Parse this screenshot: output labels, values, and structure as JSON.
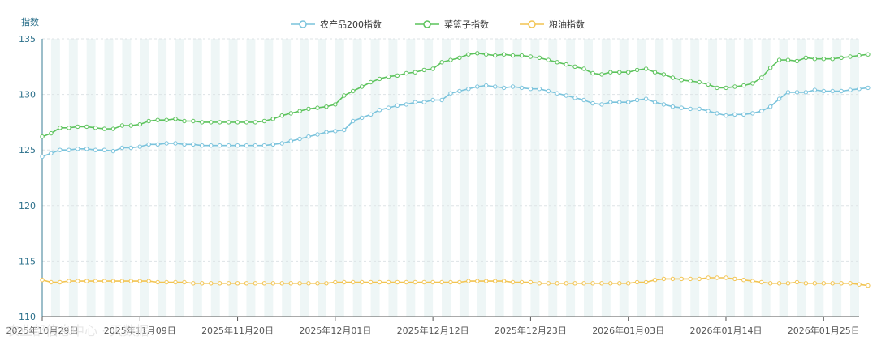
{
  "chart_data": {
    "type": "line",
    "title": "",
    "ylabel": "指数",
    "ylim": [
      110,
      135
    ],
    "yticks": [
      110,
      115,
      120,
      125,
      130,
      135
    ],
    "x_start": "2025-10-29",
    "x_end": "2026-01-29",
    "xticks": [
      "2025年10月29日",
      "2025年11月09日",
      "2025年11月20日",
      "2025年12月01日",
      "2025年12月12日",
      "2025年12月23日",
      "2026年01月03日",
      "2026年01月14日",
      "2026年01月25日"
    ],
    "legend_position": "top-center",
    "grid": "vertical-stripes",
    "watermark": "农业部信息中心 · 天数据",
    "series": [
      {
        "name": "农产品200指数",
        "color": "#7ac3dc",
        "values": [
          124.4,
          124.7,
          125.0,
          125.0,
          125.1,
          125.1,
          125.0,
          125.0,
          124.9,
          125.2,
          125.2,
          125.3,
          125.5,
          125.5,
          125.6,
          125.6,
          125.5,
          125.5,
          125.4,
          125.4,
          125.4,
          125.4,
          125.4,
          125.4,
          125.4,
          125.4,
          125.5,
          125.6,
          125.8,
          126.0,
          126.2,
          126.4,
          126.6,
          126.7,
          126.8,
          127.6,
          127.9,
          128.2,
          128.6,
          128.8,
          129.0,
          129.1,
          129.3,
          129.3,
          129.5,
          129.5,
          130.1,
          130.3,
          130.5,
          130.7,
          130.8,
          130.7,
          130.6,
          130.7,
          130.6,
          130.5,
          130.5,
          130.3,
          130.1,
          129.9,
          129.7,
          129.5,
          129.2,
          129.1,
          129.3,
          129.3,
          129.3,
          129.5,
          129.6,
          129.3,
          129.1,
          128.9,
          128.8,
          128.7,
          128.7,
          128.5,
          128.3,
          128.1,
          128.2,
          128.2,
          128.3,
          128.5,
          128.9,
          129.6,
          130.2,
          130.2,
          130.2,
          130.4,
          130.3,
          130.3,
          130.3,
          130.4,
          130.5,
          130.6
        ]
      },
      {
        "name": "菜篮子指数",
        "color": "#5cc35c",
        "values": [
          126.2,
          126.5,
          127.0,
          127.0,
          127.1,
          127.1,
          127.0,
          126.9,
          126.9,
          127.2,
          127.2,
          127.3,
          127.6,
          127.7,
          127.7,
          127.8,
          127.6,
          127.6,
          127.5,
          127.5,
          127.5,
          127.5,
          127.5,
          127.5,
          127.5,
          127.6,
          127.8,
          128.1,
          128.3,
          128.5,
          128.7,
          128.8,
          128.9,
          129.1,
          129.9,
          130.3,
          130.7,
          131.1,
          131.4,
          131.6,
          131.7,
          131.9,
          132.0,
          132.2,
          132.3,
          132.9,
          133.1,
          133.3,
          133.6,
          133.7,
          133.6,
          133.5,
          133.6,
          133.5,
          133.5,
          133.4,
          133.3,
          133.1,
          132.9,
          132.7,
          132.5,
          132.3,
          131.9,
          131.8,
          132.0,
          132.0,
          132.0,
          132.2,
          132.3,
          132.0,
          131.8,
          131.5,
          131.3,
          131.2,
          131.1,
          130.9,
          130.6,
          130.6,
          130.7,
          130.8,
          131.0,
          131.5,
          132.4,
          133.1,
          133.1,
          133.0,
          133.3,
          133.2,
          133.2,
          133.2,
          133.3,
          133.4,
          133.5,
          133.6
        ]
      },
      {
        "name": "粮油指数",
        "color": "#f2c451",
        "values": [
          113.3,
          113.1,
          113.1,
          113.2,
          113.2,
          113.2,
          113.2,
          113.2,
          113.2,
          113.2,
          113.2,
          113.2,
          113.2,
          113.1,
          113.1,
          113.1,
          113.1,
          113.0,
          113.0,
          113.0,
          113.0,
          113.0,
          113.0,
          113.0,
          113.0,
          113.0,
          113.0,
          113.0,
          113.0,
          113.0,
          113.0,
          113.0,
          113.0,
          113.1,
          113.1,
          113.1,
          113.1,
          113.1,
          113.1,
          113.1,
          113.1,
          113.1,
          113.1,
          113.1,
          113.1,
          113.1,
          113.1,
          113.1,
          113.2,
          113.2,
          113.2,
          113.2,
          113.2,
          113.1,
          113.1,
          113.1,
          113.0,
          113.0,
          113.0,
          113.0,
          113.0,
          113.0,
          113.0,
          113.0,
          113.0,
          113.0,
          113.0,
          113.1,
          113.1,
          113.3,
          113.4,
          113.4,
          113.4,
          113.4,
          113.4,
          113.5,
          113.5,
          113.5,
          113.4,
          113.3,
          113.2,
          113.1,
          113.0,
          113.0,
          113.0,
          113.1,
          113.0,
          113.0,
          113.0,
          113.0,
          113.0,
          113.0,
          112.9,
          112.8
        ]
      }
    ]
  }
}
